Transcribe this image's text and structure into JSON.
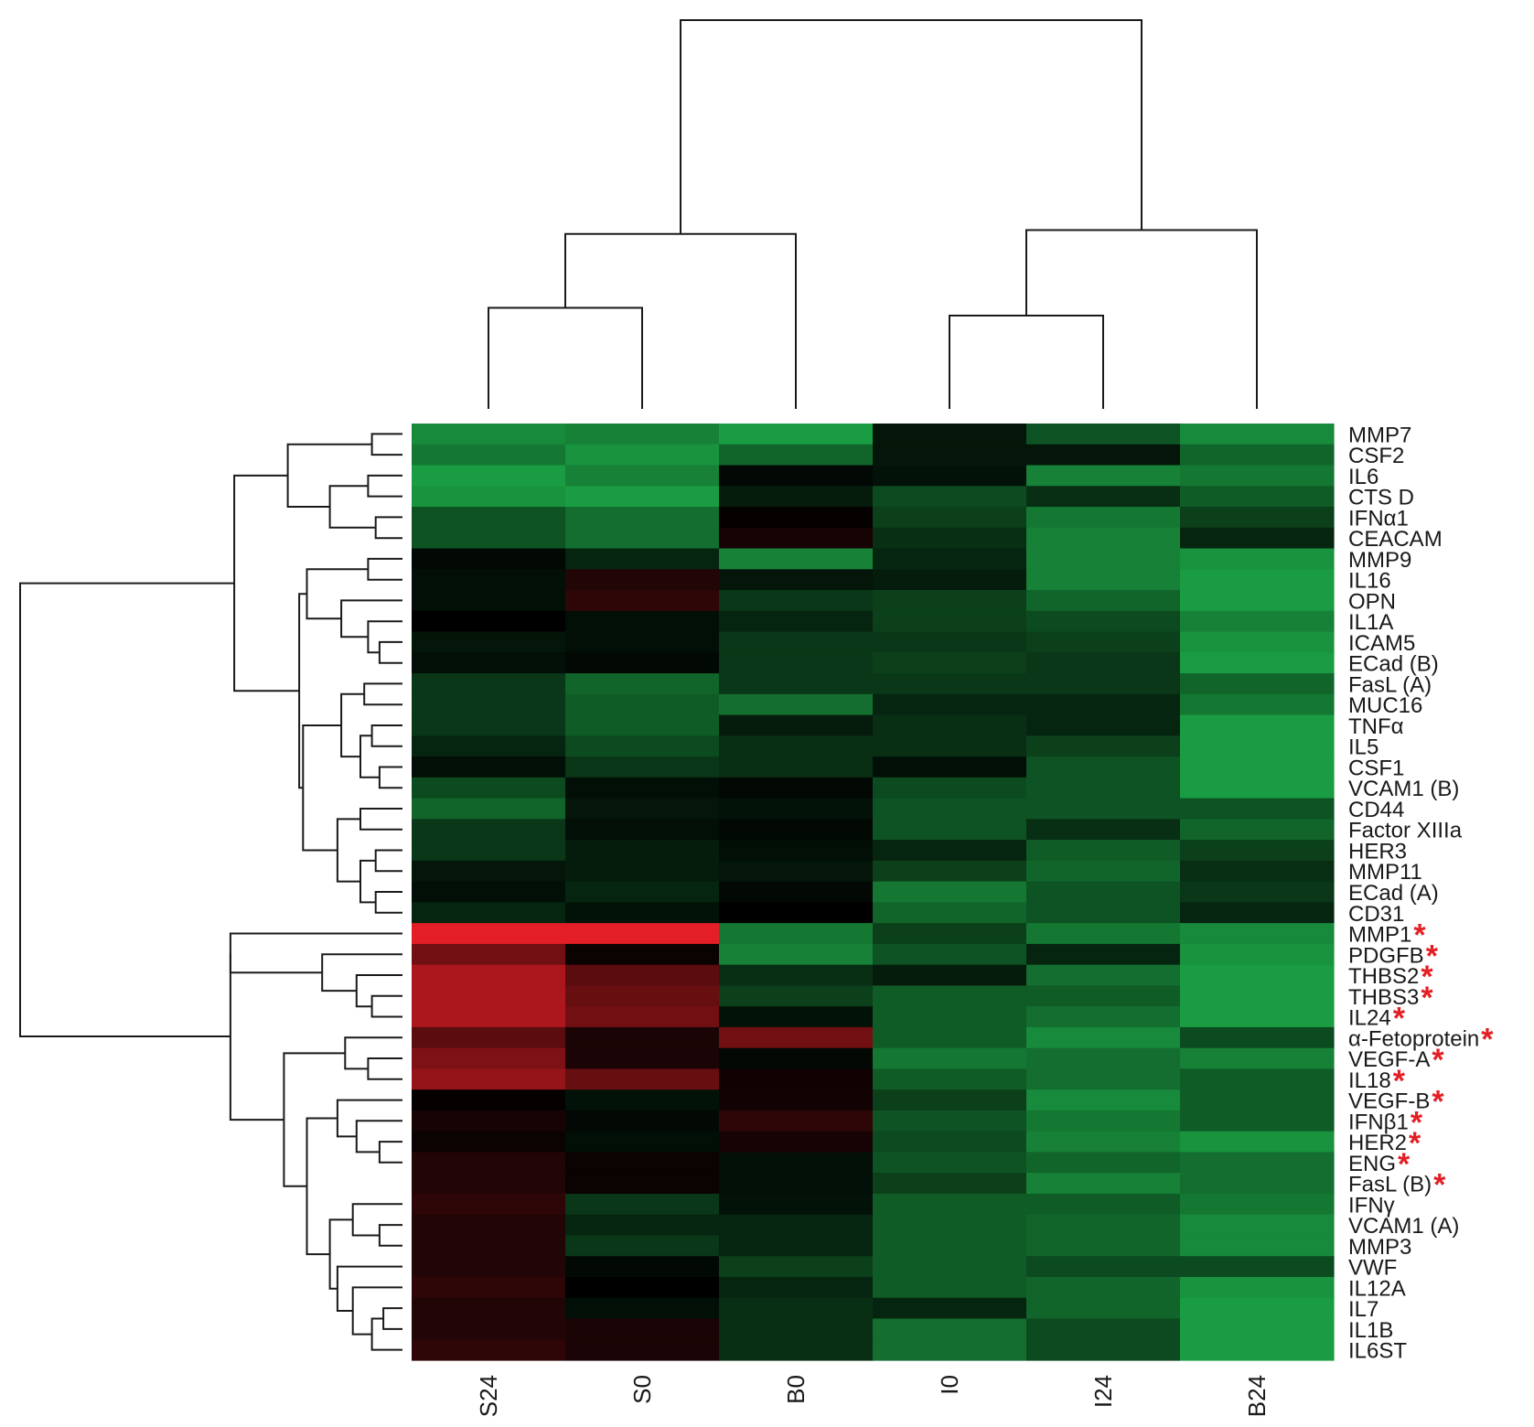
{
  "chart_data": {
    "type": "heatmap",
    "columns": [
      "S24",
      "S0",
      "B0",
      "I0",
      "I24",
      "B24"
    ],
    "rows": [
      {
        "label": "MMP7",
        "flag": false
      },
      {
        "label": "CSF2",
        "flag": false
      },
      {
        "label": "IL6",
        "flag": false
      },
      {
        "label": "CTS D",
        "flag": false
      },
      {
        "label": "IFNα1",
        "flag": false
      },
      {
        "label": "CEACAM",
        "flag": false
      },
      {
        "label": "MMP9",
        "flag": false
      },
      {
        "label": "IL16",
        "flag": false
      },
      {
        "label": "OPN",
        "flag": false
      },
      {
        "label": "IL1A",
        "flag": false
      },
      {
        "label": "ICAM5",
        "flag": false
      },
      {
        "label": "ECad (B)",
        "flag": false
      },
      {
        "label": "FasL (A)",
        "flag": false
      },
      {
        "label": "MUC16",
        "flag": false
      },
      {
        "label": "TNFα",
        "flag": false
      },
      {
        "label": "IL5",
        "flag": false
      },
      {
        "label": "CSF1",
        "flag": false
      },
      {
        "label": "VCAM1 (B)",
        "flag": false
      },
      {
        "label": "CD44",
        "flag": false
      },
      {
        "label": "Factor XIIIa",
        "flag": false
      },
      {
        "label": "HER3",
        "flag": false
      },
      {
        "label": "MMP11",
        "flag": false
      },
      {
        "label": "ECad (A)",
        "flag": false
      },
      {
        "label": "CD31",
        "flag": false
      },
      {
        "label": "MMP1",
        "flag": true
      },
      {
        "label": "PDGFB",
        "flag": true
      },
      {
        "label": "THBS2",
        "flag": true
      },
      {
        "label": "THBS3",
        "flag": true
      },
      {
        "label": "IL24",
        "flag": true
      },
      {
        "label": "α-Fetoprotein",
        "flag": true
      },
      {
        "label": "VEGF-A",
        "flag": true
      },
      {
        "label": "IL18",
        "flag": true
      },
      {
        "label": "VEGF-B",
        "flag": true
      },
      {
        "label": "IFNβ1",
        "flag": true
      },
      {
        "label": "HER2",
        "flag": true
      },
      {
        "label": "ENG",
        "flag": true
      },
      {
        "label": "FasL (B)",
        "flag": true
      },
      {
        "label": "IFNγ",
        "flag": false
      },
      {
        "label": "VCAM1 (A)",
        "flag": false
      },
      {
        "label": "MMP3",
        "flag": false
      },
      {
        "label": "VWF",
        "flag": false
      },
      {
        "label": "IL12A",
        "flag": false
      },
      {
        "label": "IL7",
        "flag": false
      },
      {
        "label": "IL1B",
        "flag": false
      },
      {
        "label": "IL6ST",
        "flag": false
      }
    ],
    "values": [
      [
        -0.75,
        -0.7,
        -0.85,
        -0.12,
        -0.45,
        -0.75
      ],
      [
        -0.65,
        -0.8,
        -0.55,
        -0.12,
        -0.12,
        -0.55
      ],
      [
        -0.85,
        -0.7,
        -0.05,
        -0.1,
        -0.7,
        -0.65
      ],
      [
        -0.8,
        -0.85,
        -0.15,
        -0.4,
        -0.25,
        -0.5
      ],
      [
        -0.45,
        -0.6,
        0.02,
        -0.35,
        -0.65,
        -0.35
      ],
      [
        -0.45,
        -0.6,
        0.1,
        -0.25,
        -0.7,
        -0.2
      ],
      [
        -0.05,
        -0.2,
        -0.7,
        -0.2,
        -0.7,
        -0.8
      ],
      [
        -0.08,
        0.15,
        -0.12,
        -0.15,
        -0.7,
        -0.85
      ],
      [
        -0.08,
        0.2,
        -0.3,
        -0.35,
        -0.55,
        -0.85
      ],
      [
        0.0,
        -0.08,
        -0.2,
        -0.35,
        -0.4,
        -0.7
      ],
      [
        -0.12,
        -0.08,
        -0.3,
        -0.3,
        -0.35,
        -0.8
      ],
      [
        -0.08,
        -0.05,
        -0.3,
        -0.35,
        -0.3,
        -0.85
      ],
      [
        -0.3,
        -0.55,
        -0.3,
        -0.3,
        -0.3,
        -0.55
      ],
      [
        -0.3,
        -0.5,
        -0.6,
        -0.2,
        -0.2,
        -0.65
      ],
      [
        -0.3,
        -0.5,
        -0.15,
        -0.25,
        -0.2,
        -0.85
      ],
      [
        -0.2,
        -0.4,
        -0.25,
        -0.25,
        -0.35,
        -0.85
      ],
      [
        -0.08,
        -0.3,
        -0.25,
        -0.08,
        -0.45,
        -0.85
      ],
      [
        -0.4,
        -0.08,
        -0.05,
        -0.4,
        -0.45,
        -0.85
      ],
      [
        -0.55,
        -0.12,
        -0.1,
        -0.45,
        -0.45,
        -0.45
      ],
      [
        -0.3,
        -0.08,
        -0.05,
        -0.45,
        -0.25,
        -0.55
      ],
      [
        -0.3,
        -0.15,
        -0.08,
        -0.2,
        -0.5,
        -0.35
      ],
      [
        -0.12,
        -0.15,
        -0.12,
        -0.35,
        -0.55,
        -0.25
      ],
      [
        -0.08,
        -0.2,
        -0.05,
        -0.65,
        -0.45,
        -0.3
      ],
      [
        -0.2,
        -0.1,
        0.0,
        -0.55,
        -0.45,
        -0.2
      ],
      [
        1.0,
        1.0,
        -0.65,
        -0.35,
        -0.65,
        -0.75
      ],
      [
        0.5,
        0.05,
        -0.7,
        -0.45,
        -0.2,
        -0.8
      ],
      [
        0.75,
        0.4,
        -0.25,
        -0.15,
        -0.6,
        -0.85
      ],
      [
        0.75,
        0.45,
        -0.35,
        -0.5,
        -0.5,
        -0.85
      ],
      [
        0.75,
        0.5,
        -0.1,
        -0.5,
        -0.6,
        -0.85
      ],
      [
        0.4,
        0.12,
        0.5,
        -0.5,
        -0.75,
        -0.4
      ],
      [
        0.55,
        0.12,
        -0.05,
        -0.65,
        -0.6,
        -0.7
      ],
      [
        0.65,
        0.45,
        0.07,
        -0.5,
        -0.6,
        -0.5
      ],
      [
        0.02,
        -0.1,
        0.08,
        -0.35,
        -0.75,
        -0.5
      ],
      [
        0.1,
        -0.05,
        0.2,
        -0.45,
        -0.65,
        -0.5
      ],
      [
        0.05,
        -0.08,
        0.1,
        -0.4,
        -0.7,
        -0.8
      ],
      [
        0.15,
        0.05,
        -0.08,
        -0.45,
        -0.55,
        -0.6
      ],
      [
        0.15,
        0.05,
        -0.08,
        -0.35,
        -0.7,
        -0.6
      ],
      [
        0.2,
        -0.3,
        -0.1,
        -0.5,
        -0.5,
        -0.65
      ],
      [
        0.15,
        -0.2,
        -0.2,
        -0.5,
        -0.55,
        -0.75
      ],
      [
        0.15,
        -0.3,
        -0.2,
        -0.5,
        -0.55,
        -0.75
      ],
      [
        0.15,
        -0.05,
        -0.35,
        -0.5,
        -0.4,
        -0.4
      ],
      [
        0.2,
        0.0,
        -0.2,
        -0.5,
        -0.55,
        -0.8
      ],
      [
        0.15,
        -0.08,
        -0.25,
        -0.2,
        -0.55,
        -0.85
      ],
      [
        0.15,
        0.12,
        -0.25,
        -0.6,
        -0.4,
        -0.85
      ],
      [
        0.2,
        0.12,
        -0.25,
        -0.6,
        -0.4,
        -0.85
      ]
    ],
    "color_scale": {
      "low": "#1fb84e",
      "mid": "#000000",
      "high": "#e41e26"
    },
    "flag_color": "#e31e24",
    "flag_symbol": "*",
    "column_dendrogram": [
      [
        0,
        1,
        0.26
      ],
      [
        6,
        2,
        0.45
      ],
      [
        3,
        4,
        0.24
      ],
      [
        8,
        5,
        0.46
      ],
      [
        7,
        9,
        1.0
      ]
    ],
    "row_dendrogram": [
      [
        0,
        1,
        0.08
      ],
      [
        2,
        3,
        0.09
      ],
      [
        4,
        5,
        0.07
      ],
      [
        46,
        47,
        0.19
      ],
      [
        48,
        45,
        0.3
      ],
      [
        6,
        7,
        0.09
      ],
      [
        10,
        11,
        0.06
      ],
      [
        9,
        51,
        0.09
      ],
      [
        8,
        52,
        0.16
      ],
      [
        50,
        53,
        0.25
      ],
      [
        12,
        13,
        0.1
      ],
      [
        14,
        15,
        0.08
      ],
      [
        16,
        17,
        0.06
      ],
      [
        56,
        57,
        0.11
      ],
      [
        55,
        58,
        0.16
      ],
      [
        18,
        19,
        0.11
      ],
      [
        20,
        21,
        0.07
      ],
      [
        22,
        23,
        0.07
      ],
      [
        61,
        62,
        0.11
      ],
      [
        60,
        63,
        0.17
      ],
      [
        59,
        64,
        0.26
      ],
      [
        54,
        65,
        0.27
      ],
      [
        49,
        66,
        0.44
      ],
      [
        27,
        28,
        0.08
      ],
      [
        26,
        68,
        0.12
      ],
      [
        25,
        69,
        0.21
      ],
      [
        24,
        70,
        0.45
      ],
      [
        30,
        31,
        0.09
      ],
      [
        29,
        72,
        0.15
      ],
      [
        34,
        35,
        0.06
      ],
      [
        33,
        74,
        0.12
      ],
      [
        32,
        75,
        0.17
      ],
      [
        38,
        39,
        0.06
      ],
      [
        37,
        77,
        0.13
      ],
      [
        42,
        43,
        0.05
      ],
      [
        44,
        79,
        0.08
      ],
      [
        41,
        80,
        0.13
      ],
      [
        40,
        81,
        0.17
      ],
      [
        78,
        82,
        0.19
      ],
      [
        76,
        83,
        0.25
      ],
      [
        73,
        84,
        0.31
      ],
      [
        71,
        85,
        0.45
      ],
      [
        67,
        86,
        1.0
      ]
    ]
  }
}
